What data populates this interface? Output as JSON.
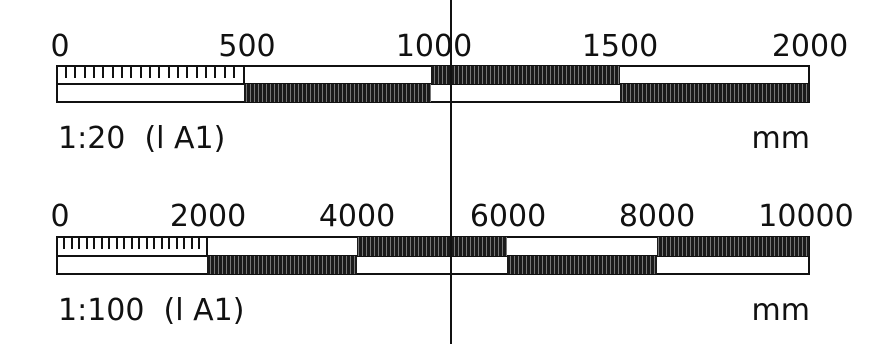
{
  "colors": {
    "ink": "#111111",
    "paper": "#ffffff",
    "hatch": "#555555"
  },
  "scales": [
    {
      "tick_labels": [
        "0",
        "500",
        "1000",
        "1500",
        "2000"
      ],
      "ratio_label": "1:20  (l A1)",
      "unit_label": "mm"
    },
    {
      "tick_labels": [
        "0",
        "2000",
        "4000",
        "6000",
        "8000",
        "10000"
      ],
      "ratio_label": "1:100  (l A1)",
      "unit_label": "mm"
    }
  ]
}
